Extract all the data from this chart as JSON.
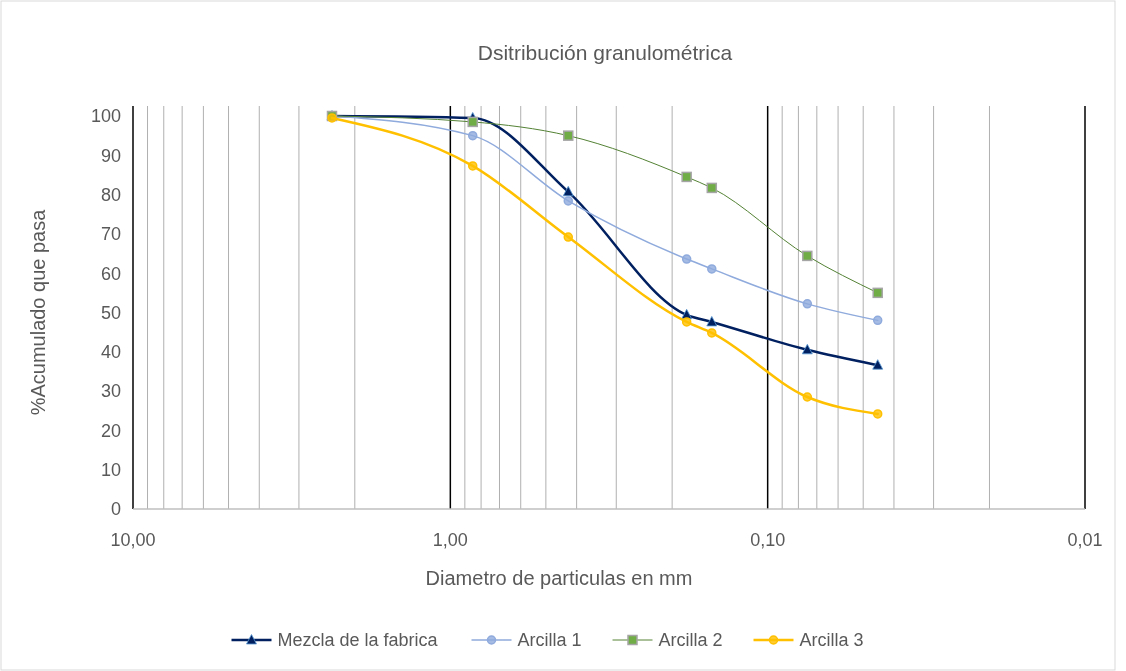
{
  "chart_data": {
    "type": "line",
    "title": "Dsitribución granulométrica",
    "xlabel": "Diametro de particulas en mm",
    "ylabel": "%Acumulado que pasa",
    "log": "x",
    "grid": "x",
    "legend": "bottom",
    "xlim": [
      10,
      0.01
    ],
    "xticks": [
      {
        "value": 10,
        "label": "10,00"
      },
      {
        "value": 9,
        "label": null
      },
      {
        "value": 8,
        "label": null
      },
      {
        "value": 7,
        "label": null
      },
      {
        "value": 6,
        "label": null
      },
      {
        "value": 5,
        "label": null
      },
      {
        "value": 4,
        "label": null
      },
      {
        "value": 3,
        "label": null
      },
      {
        "value": 2,
        "label": null
      },
      {
        "value": 1,
        "label": "1,00"
      },
      {
        "value": 0.9,
        "label": null
      },
      {
        "value": 0.8,
        "label": null
      },
      {
        "value": 0.7,
        "label": null
      },
      {
        "value": 0.6,
        "label": null
      },
      {
        "value": 0.5,
        "label": null
      },
      {
        "value": 0.4,
        "label": null
      },
      {
        "value": 0.3,
        "label": null
      },
      {
        "value": 0.2,
        "label": null
      },
      {
        "value": 0.1,
        "label": "0,10"
      },
      {
        "value": 0.09,
        "label": null
      },
      {
        "value": 0.08,
        "label": null
      },
      {
        "value": 0.07,
        "label": null
      },
      {
        "value": 0.06,
        "label": null
      },
      {
        "value": 0.05,
        "label": null
      },
      {
        "value": 0.04,
        "label": null
      },
      {
        "value": 0.03,
        "label": null
      },
      {
        "value": 0.02,
        "label": null
      },
      {
        "value": 0.01,
        "label": "0,01"
      }
    ],
    "ylim": [
      0,
      100
    ],
    "yticks": [
      0,
      10,
      20,
      30,
      40,
      50,
      60,
      70,
      80,
      90,
      100
    ],
    "x": [
      2.36,
      0.85,
      0.425,
      0.18,
      0.15,
      0.075,
      0.045
    ],
    "series": [
      {
        "name": "Mezcla de la fabrica",
        "color": "#002060",
        "marker": "triangle",
        "values": [
          100,
          99.5,
          80.7,
          49.4,
          47.6,
          40.5,
          36.6
        ]
      },
      {
        "name": "Arcilla 1",
        "color": "#8faadc",
        "marker": "circle",
        "values": [
          100,
          95,
          78.4,
          63.6,
          61.1,
          52.2,
          48
        ]
      },
      {
        "name": "Arcilla 2",
        "color": "#548235",
        "marker": "square",
        "values": [
          100,
          98.5,
          95,
          84.5,
          81.7,
          64.4,
          55
        ]
      },
      {
        "name": "Arcilla 3",
        "color": "#ffc000",
        "marker": "circle",
        "values": [
          99.5,
          87.3,
          69.2,
          47.6,
          44.8,
          28.5,
          24.2
        ]
      }
    ]
  }
}
